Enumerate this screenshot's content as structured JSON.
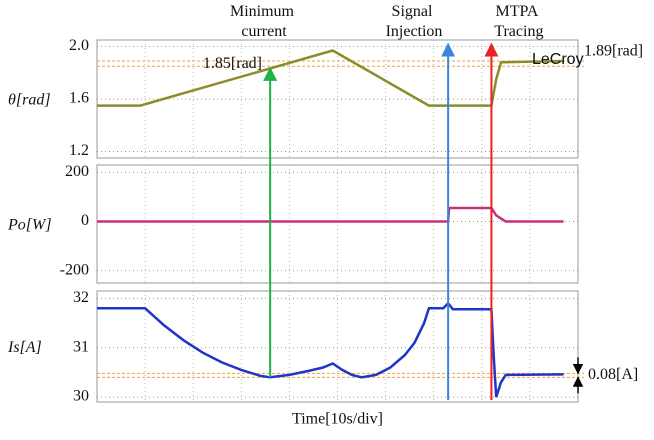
{
  "chart_data": [
    {
      "type": "line",
      "ylabel": "θ[rad]",
      "ylim": [
        1.15,
        2.05
      ],
      "yticks": [
        {
          "value": 2.0,
          "label": "2.0"
        },
        1.6,
        1.2
      ],
      "xlim": [
        0,
        100
      ],
      "series": [
        {
          "color": "#8c8c2a",
          "x": [
            0,
            9,
            49,
            69,
            82,
            83,
            84,
            97
          ],
          "values": [
            1.55,
            1.55,
            1.97,
            1.55,
            1.55,
            1.75,
            1.88,
            1.89
          ]
        }
      ],
      "ref_lines": [
        {
          "value": 1.85,
          "label": "1.85[rad]"
        },
        {
          "value": 1.89,
          "label": "1.89[rad]"
        }
      ],
      "brand": "LeCroy",
      "annotations": [
        {
          "text": "Minimum current",
          "x": 36,
          "color": "#22b04a"
        },
        {
          "text": "Signal Injection",
          "x": 73,
          "color": "#3a86d8"
        },
        {
          "text": "MTPA Tracing",
          "x": 82,
          "color": "#ee2020"
        }
      ]
    },
    {
      "type": "line",
      "ylabel": "Po[W]",
      "ylim": [
        -250,
        230
      ],
      "yticks": [
        200,
        0,
        -200
      ],
      "xlim": [
        0,
        100
      ],
      "series": [
        {
          "color": "#c8307a",
          "x": [
            0,
            73,
            73.2,
            82,
            83,
            85,
            97
          ],
          "values": [
            0,
            0,
            55,
            55,
            25,
            0,
            0
          ]
        }
      ]
    },
    {
      "type": "line",
      "ylabel": "Is[A]",
      "xlabel": "Time[10s/div]",
      "ylim": [
        29.9,
        32.15
      ],
      "yticks": [
        32,
        31,
        30
      ],
      "xlim": [
        0,
        100
      ],
      "series": [
        {
          "color": "#1f35c8",
          "x": [
            0,
            10,
            14,
            18,
            22,
            26,
            30,
            34,
            36,
            40,
            44,
            47,
            49,
            51,
            53,
            55,
            58,
            61,
            64,
            66,
            68,
            69,
            72,
            73,
            74,
            82,
            82.5,
            83,
            84,
            85,
            97
          ],
          "values": [
            31.8,
            31.8,
            31.45,
            31.15,
            30.9,
            30.7,
            30.55,
            30.43,
            30.4,
            30.45,
            30.53,
            30.6,
            30.68,
            30.55,
            30.45,
            30.4,
            30.45,
            30.6,
            30.85,
            31.1,
            31.5,
            31.8,
            31.8,
            31.9,
            31.78,
            31.78,
            30.8,
            30.0,
            30.3,
            30.45,
            30.46
          ]
        }
      ],
      "ref_lines": [
        {
          "value": 30.4
        },
        {
          "value": 30.48
        }
      ],
      "difference": {
        "value": 0.08,
        "label": "0.08[A]"
      }
    }
  ]
}
